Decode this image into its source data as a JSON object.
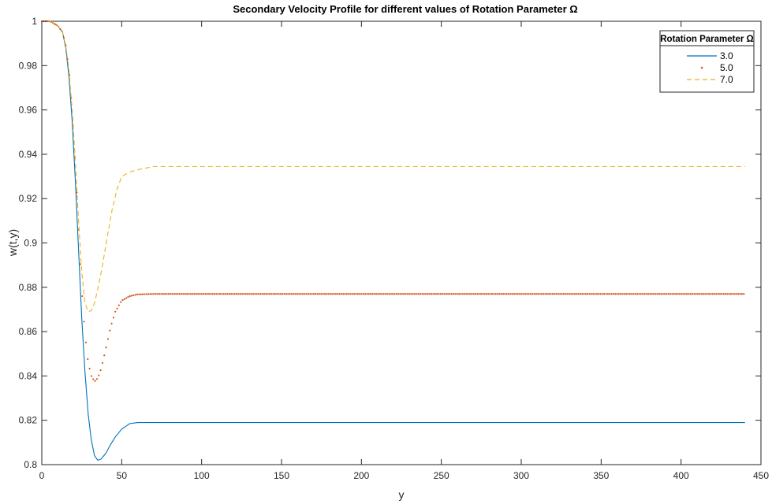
{
  "chart_data": {
    "type": "line",
    "title": "Secondary Velocity Profile for different values of Rotation Parameter Ω",
    "xlabel": "y",
    "ylabel": "w(t,y)",
    "xlim": [
      0,
      450
    ],
    "ylim": [
      0.8,
      1.0
    ],
    "xticks": [
      "0",
      "50",
      "100",
      "150",
      "200",
      "250",
      "300",
      "350",
      "400",
      "450"
    ],
    "yticks": [
      "0.8",
      "0.82",
      "0.84",
      "0.86",
      "0.88",
      "0.9",
      "0.92",
      "0.94",
      "0.96",
      "0.98",
      "1"
    ],
    "grid": false,
    "legend": {
      "title": "Rotation Parameter Ω",
      "placement": "top-right"
    },
    "series": [
      {
        "name": "3.0",
        "style": "solid",
        "color": "#0072BD",
        "x": [
          0,
          5,
          10,
          13,
          15,
          17,
          19,
          21,
          23,
          25,
          27,
          29,
          31,
          33,
          35,
          37,
          40,
          43,
          46,
          50,
          55,
          60,
          70,
          80,
          100,
          150,
          200,
          250,
          300,
          350,
          400,
          440
        ],
        "y": [
          1.0,
          1.0,
          0.998,
          0.995,
          0.988,
          0.975,
          0.955,
          0.928,
          0.897,
          0.866,
          0.842,
          0.823,
          0.811,
          0.804,
          0.802,
          0.8025,
          0.805,
          0.809,
          0.8125,
          0.816,
          0.8185,
          0.819,
          0.819,
          0.819,
          0.819,
          0.819,
          0.819,
          0.819,
          0.819,
          0.819,
          0.819,
          0.819
        ]
      },
      {
        "name": "5.0",
        "style": "dotted",
        "color": "#D95319",
        "x": [
          0,
          5,
          10,
          13,
          15,
          17,
          19,
          21,
          23,
          25,
          27,
          29,
          31,
          33,
          35,
          37,
          40,
          43,
          46,
          50,
          55,
          60,
          70,
          80,
          100,
          150,
          200,
          250,
          300,
          350,
          400,
          440
        ],
        "y": [
          1.0,
          1.0,
          0.998,
          0.995,
          0.989,
          0.978,
          0.96,
          0.935,
          0.906,
          0.879,
          0.859,
          0.846,
          0.84,
          0.8375,
          0.839,
          0.843,
          0.852,
          0.862,
          0.869,
          0.874,
          0.876,
          0.8768,
          0.877,
          0.877,
          0.877,
          0.877,
          0.877,
          0.877,
          0.877,
          0.877,
          0.877,
          0.877
        ]
      },
      {
        "name": "7.0",
        "style": "dashed",
        "color": "#EDB120",
        "x": [
          0,
          5,
          10,
          13,
          15,
          17,
          19,
          21,
          23,
          25,
          27,
          29,
          31,
          33,
          35,
          38,
          41,
          44,
          47,
          50,
          55,
          60,
          70,
          80,
          100,
          150,
          200,
          250,
          300,
          350,
          400,
          440
        ],
        "y": [
          1.0,
          1.0,
          0.998,
          0.995,
          0.989,
          0.978,
          0.96,
          0.937,
          0.91,
          0.887,
          0.873,
          0.869,
          0.8695,
          0.873,
          0.879,
          0.89,
          0.903,
          0.915,
          0.924,
          0.93,
          0.932,
          0.933,
          0.9345,
          0.9345,
          0.9345,
          0.9345,
          0.9345,
          0.9345,
          0.9345,
          0.9345,
          0.9345,
          0.9345
        ]
      }
    ]
  }
}
